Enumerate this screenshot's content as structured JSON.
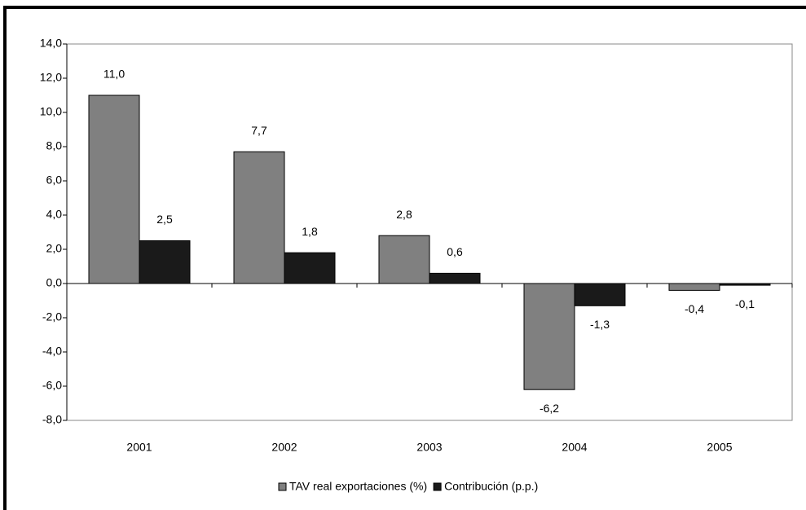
{
  "chart_data": {
    "type": "bar",
    "categories": [
      "2001",
      "2002",
      "2003",
      "2004",
      "2005"
    ],
    "series": [
      {
        "name": "TAV real exportaciones (%)",
        "color": "#808080",
        "values": [
          11.0,
          7.7,
          2.8,
          -6.2,
          -0.4
        ],
        "value_labels": [
          "11,0",
          "7,7",
          "2,8",
          "-6,2",
          "-0,4"
        ]
      },
      {
        "name": "Contribución (p.p.)",
        "color": "#1a1a1a",
        "values": [
          2.5,
          1.8,
          0.6,
          -1.3,
          -0.1
        ],
        "value_labels": [
          "2,5",
          "1,8",
          "0,6",
          "-1,3",
          "-0,1"
        ]
      }
    ],
    "ylim": [
      -8,
      14
    ],
    "yticks": [
      {
        "value": -8,
        "label": "-8,0"
      },
      {
        "value": -6,
        "label": "-6,0"
      },
      {
        "value": -4,
        "label": "-4,0"
      },
      {
        "value": -2,
        "label": "-2,0"
      },
      {
        "value": 0,
        "label": "0,0"
      },
      {
        "value": 2,
        "label": "2,0"
      },
      {
        "value": 4,
        "label": "4,0"
      },
      {
        "value": 6,
        "label": "6,0"
      },
      {
        "value": 8,
        "label": "8,0"
      },
      {
        "value": 10,
        "label": "10,0"
      },
      {
        "value": 12,
        "label": "12,0"
      },
      {
        "value": 14,
        "label": "14,0"
      }
    ],
    "grid": false,
    "legend": "bottom"
  }
}
